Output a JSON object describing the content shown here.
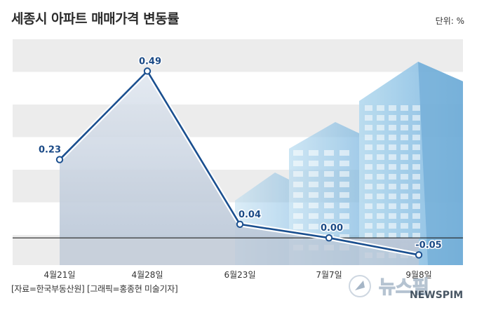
{
  "header": {
    "title": "세종시 아파트 매매가격 변동률",
    "unit": "단위: %"
  },
  "footer": {
    "source": "[자료=한국부동산원] [그래픽=홍종현 미술기자]"
  },
  "watermark": {
    "brand_text": "뉴스핌",
    "brand_sub": "NEWSPIM"
  },
  "colors": {
    "line": "#1a4f8f",
    "area": "#c9d3e0",
    "band": "#ececec",
    "label": "#1b4a86",
    "building": "#9cc8e6"
  },
  "chart_data": {
    "type": "line",
    "categories": [
      "4월21일",
      "4월28일",
      "6월23일",
      "7월7일",
      "9월8일"
    ],
    "values": [
      0.23,
      0.49,
      0.04,
      0.0,
      -0.05
    ],
    "value_labels": [
      "0.23",
      "0.49",
      "0.04",
      "0.00",
      "-0.05"
    ],
    "ylim": [
      -0.08,
      0.6
    ],
    "baseline": 0,
    "grid": "alternating horizontal bands",
    "title": "세종시 아파트 매매가격 변동률",
    "unit": "단위: %"
  }
}
